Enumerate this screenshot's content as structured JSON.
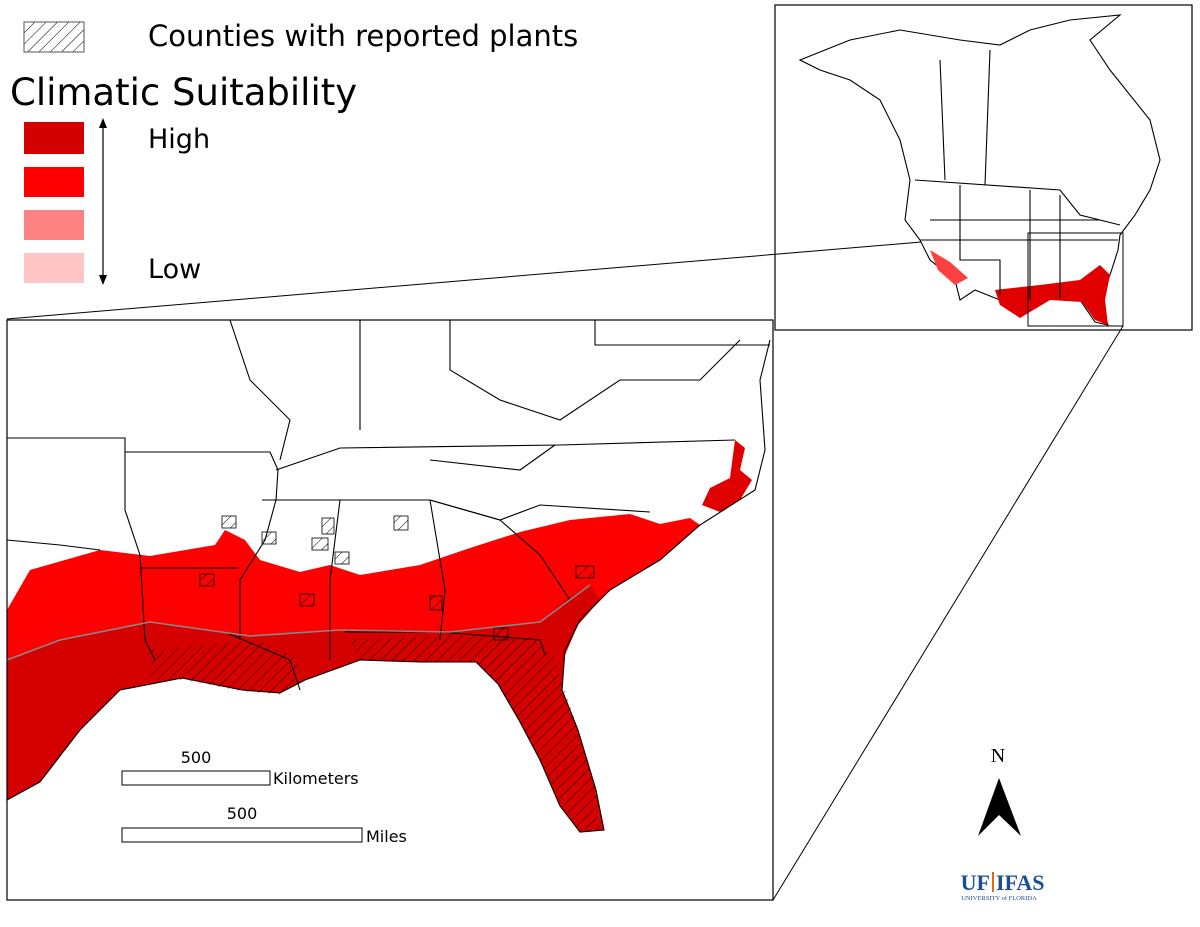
{
  "legend": {
    "hatch_label": "Counties with reported plants",
    "title": "Climatic Suitability",
    "high": "High",
    "low": "Low"
  },
  "scale_bar": {
    "km_value": 500,
    "km_label": "Kilometers",
    "mi_value": 500,
    "mi_label": "Miles"
  },
  "north_arrow": {
    "label": "N"
  },
  "logo": {
    "uf": "UF",
    "ifas": "IFAS",
    "university": "UNIVERSITY of FLORIDA"
  }
}
